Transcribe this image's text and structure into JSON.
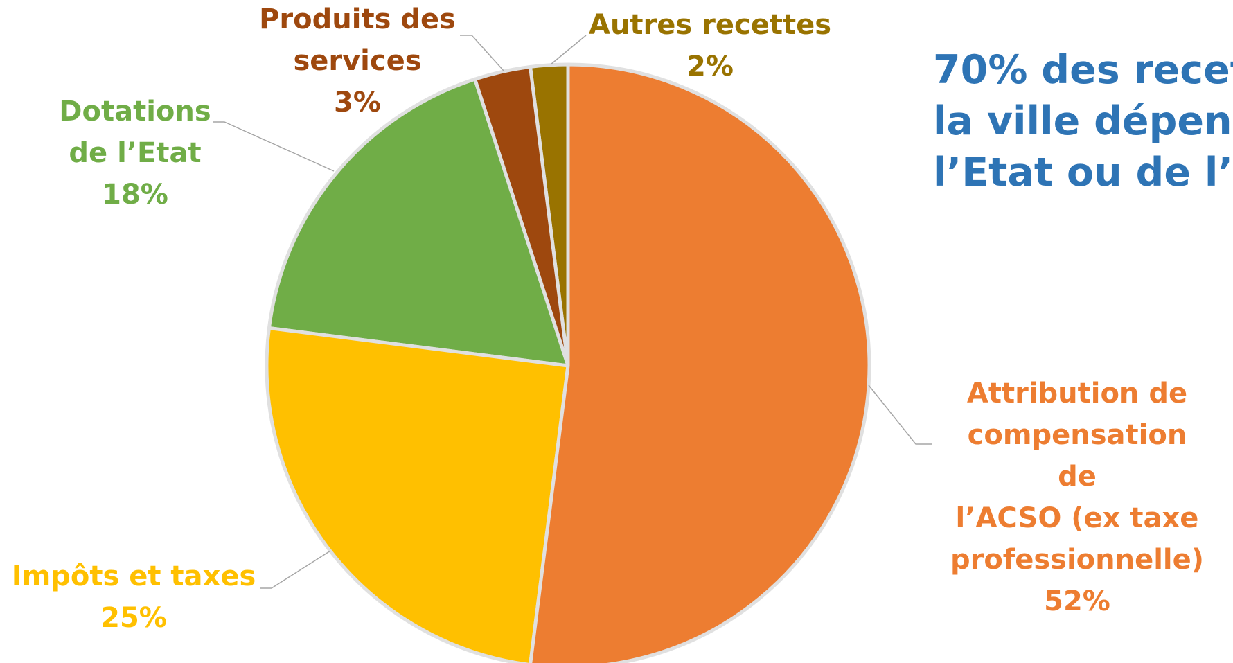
{
  "chart_data": {
    "type": "pie",
    "title_lines": [
      "70% des recet",
      "la ville dépend",
      "l’Etat ou de l’A"
    ],
    "categories": [
      "Attribution de\ncompensation de\nl’ACSO (ex taxe\nprofessionnelle)",
      "Impôts et taxes",
      "Dotations\nde l’Etat",
      "Produits des\nservices",
      "Autres recettes"
    ],
    "values": [
      52,
      25,
      18,
      3,
      2
    ],
    "value_labels": [
      "52%",
      "25%",
      "18%",
      "3%",
      "2%"
    ],
    "colors": [
      "#ED7D31",
      "#FFC000",
      "#70AD47",
      "#9E480E",
      "#997300"
    ]
  }
}
